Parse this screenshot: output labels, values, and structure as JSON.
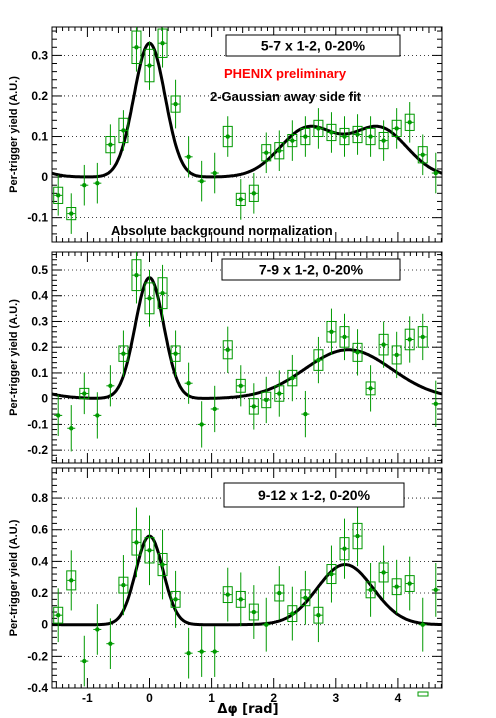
{
  "chart_data": [
    {
      "type": "scatter",
      "label": "5-7 x 1-2, 0-20%",
      "ylabel": "Per-trigger yield (A.U.)",
      "xlabel": "Δφ [rad]",
      "xlim": [
        -1.57,
        4.71
      ],
      "ylim": [
        -0.16,
        0.37
      ],
      "yticks": [
        -0.1,
        0,
        0.1,
        0.2,
        0.3
      ],
      "ytick_labels": [
        "-0.1",
        "0",
        "0.1",
        "0.2",
        "0.3"
      ],
      "xticks": [
        -1,
        0,
        1,
        2,
        3,
        4
      ],
      "grid": "horizontal dotted",
      "annotations": [
        {
          "text": "PHENIX preliminary",
          "color": "#ff0000"
        },
        {
          "text": "2-Gaussian away side fit",
          "color": "#000000"
        },
        {
          "text": "Absolute background normalization",
          "color": "#000000"
        }
      ],
      "data": {
        "x": [
          -1.47,
          -1.26,
          -1.05,
          -0.84,
          -0.63,
          -0.42,
          -0.21,
          0.0,
          0.21,
          0.42,
          0.63,
          0.84,
          1.05,
          1.26,
          1.47,
          1.68,
          1.88,
          2.09,
          2.3,
          2.51,
          2.72,
          2.93,
          3.14,
          3.35,
          3.56,
          3.77,
          3.98,
          4.19,
          4.4,
          4.61
        ],
        "y": [
          -0.045,
          -0.09,
          -0.02,
          -0.015,
          0.08,
          0.115,
          0.32,
          0.275,
          0.33,
          0.18,
          0.05,
          -0.01,
          0.01,
          0.1,
          -0.055,
          -0.04,
          0.06,
          0.065,
          0.09,
          0.1,
          0.12,
          0.11,
          0.1,
          0.105,
          0.1,
          0.09,
          0.12,
          0.135,
          0.055,
          0.01
        ],
        "yerr": [
          0.05,
          0.05,
          0.05,
          0.05,
          0.05,
          0.05,
          0.06,
          0.06,
          0.06,
          0.06,
          0.05,
          0.05,
          0.05,
          0.05,
          0.05,
          0.05,
          0.05,
          0.05,
          0.05,
          0.05,
          0.05,
          0.05,
          0.05,
          0.05,
          0.05,
          0.05,
          0.05,
          0.05,
          0.05,
          0.05
        ],
        "syst": [
          0.02,
          0.015,
          0.0,
          0.0,
          0.02,
          0.03,
          0.04,
          0.04,
          0.035,
          0.02,
          0.0,
          0.0,
          0.0,
          0.025,
          0.015,
          0.02,
          0.02,
          0.02,
          0.015,
          0.02,
          0.02,
          0.02,
          0.02,
          0.02,
          0.02,
          0.02,
          0.02,
          0.02,
          0.02,
          0.0
        ]
      },
      "fit": {
        "near_amp": 0.33,
        "near_sigma": 0.25,
        "away1_mu": 2.55,
        "away1_amp": 0.12,
        "away1_sigma": 0.45,
        "away2_mu": 3.7,
        "away2_amp": 0.12,
        "away2_sigma": 0.45
      }
    },
    {
      "type": "scatter",
      "label": "7-9 x 1-2, 0-20%",
      "ylabel": "Per-trigger yield (A.U.)",
      "xlim": [
        -1.57,
        4.71
      ],
      "ylim": [
        -0.25,
        0.57
      ],
      "yticks": [
        -0.2,
        -0.1,
        0,
        0.1,
        0.2,
        0.3,
        0.4,
        0.5
      ],
      "ytick_labels": [
        "-0.2",
        "-0.1",
        "0",
        "0.1",
        "0.2",
        "0.3",
        "0.4",
        "0.5"
      ],
      "xticks": [
        -1,
        0,
        1,
        2,
        3,
        4
      ],
      "grid": "horizontal dotted",
      "data": {
        "x": [
          -1.47,
          -1.26,
          -1.05,
          -0.84,
          -0.63,
          -0.42,
          -0.21,
          0.0,
          0.21,
          0.42,
          0.63,
          0.84,
          1.05,
          1.26,
          1.47,
          1.68,
          1.88,
          2.09,
          2.3,
          2.51,
          2.72,
          2.93,
          3.14,
          3.35,
          3.56,
          3.77,
          3.98,
          4.19,
          4.4,
          4.61
        ],
        "y": [
          -0.065,
          -0.115,
          0.02,
          -0.065,
          0.05,
          0.175,
          0.48,
          0.39,
          0.41,
          0.175,
          0.06,
          -0.1,
          -0.04,
          0.19,
          0.05,
          -0.03,
          -0.005,
          0.02,
          0.08,
          -0.06,
          0.15,
          0.26,
          0.24,
          0.18,
          0.04,
          0.21,
          0.17,
          0.23,
          0.24,
          -0.02
        ],
        "yerr": [
          0.08,
          0.09,
          0.08,
          0.09,
          0.08,
          0.09,
          0.11,
          0.11,
          0.11,
          0.09,
          0.08,
          0.09,
          0.09,
          0.09,
          0.08,
          0.09,
          0.09,
          0.09,
          0.09,
          0.09,
          0.09,
          0.09,
          0.09,
          0.09,
          0.09,
          0.09,
          0.09,
          0.09,
          0.09,
          0.09
        ],
        "syst": [
          0.0,
          0.0,
          0.02,
          0.0,
          0.0,
          0.03,
          0.06,
          0.06,
          0.06,
          0.03,
          0.0,
          0.0,
          0.0,
          0.035,
          0.025,
          0.03,
          0.03,
          0.03,
          0.03,
          0.0,
          0.04,
          0.04,
          0.04,
          0.035,
          0.025,
          0.04,
          0.035,
          0.04,
          0.04,
          0.0
        ]
      },
      "fit": {
        "near_amp": 0.47,
        "near_sigma": 0.23,
        "away1_mu": 3.2,
        "away1_amp": 0.19,
        "away1_sigma": 0.7,
        "away2_mu": 3.2,
        "away2_amp": 0.0,
        "away2_sigma": 0.7
      }
    },
    {
      "type": "scatter",
      "label": "9-12 x 1-2, 0-20%",
      "ylabel": "Per-trigger yield (A.U.)",
      "xlabel": "Δφ [rad]",
      "xlim": [
        -1.57,
        4.71
      ],
      "ylim": [
        -0.4,
        0.99
      ],
      "yticks": [
        -0.4,
        -0.2,
        0,
        0.2,
        0.4,
        0.6,
        0.8
      ],
      "ytick_labels": [
        "-0.4",
        "-0.2",
        "0",
        "0.2",
        "0.4",
        "0.6",
        "0.8"
      ],
      "xticks": [
        -1,
        0,
        1,
        2,
        3,
        4
      ],
      "xtick_labels": [
        "-1",
        "0",
        "1",
        "2",
        "3",
        "4"
      ],
      "grid": "horizontal dotted",
      "data": {
        "x": [
          -1.47,
          -1.26,
          -1.05,
          -0.84,
          -0.63,
          -0.42,
          -0.21,
          0.0,
          0.21,
          0.42,
          0.63,
          0.84,
          1.05,
          1.26,
          1.47,
          1.68,
          1.88,
          2.09,
          2.3,
          2.51,
          2.72,
          2.93,
          3.14,
          3.35,
          3.56,
          3.77,
          3.98,
          4.19,
          4.4,
          4.61
        ],
        "y": [
          0.06,
          0.28,
          -0.23,
          -0.03,
          -0.12,
          0.25,
          0.52,
          0.47,
          0.38,
          0.16,
          -0.18,
          -0.17,
          -0.17,
          0.19,
          0.16,
          0.08,
          0.0,
          0.2,
          0.07,
          0.17,
          0.06,
          0.32,
          0.48,
          0.56,
          0.22,
          0.33,
          0.24,
          0.26,
          0.0,
          0.22
        ],
        "yerr": [
          0.17,
          0.19,
          0.16,
          0.16,
          0.16,
          0.19,
          0.22,
          0.22,
          0.22,
          0.18,
          0.16,
          0.16,
          0.16,
          0.17,
          0.17,
          0.17,
          0.17,
          0.17,
          0.17,
          0.17,
          0.17,
          0.18,
          0.19,
          0.19,
          0.17,
          0.17,
          0.17,
          0.17,
          0.17,
          0.17
        ],
        "syst": [
          0.05,
          0.06,
          0.0,
          0.0,
          0.0,
          0.05,
          0.08,
          0.08,
          0.07,
          0.05,
          0.0,
          0.0,
          0.0,
          0.05,
          0.05,
          0.05,
          0.0,
          0.05,
          0.05,
          0.05,
          0.05,
          0.06,
          0.07,
          0.08,
          0.05,
          0.06,
          0.05,
          0.05,
          0.0,
          0.0
        ]
      },
      "fit": {
        "near_amp": 0.56,
        "near_sigma": 0.22,
        "away1_mu": 3.15,
        "away1_amp": 0.38,
        "away1_sigma": 0.45,
        "away2_mu": 3.15,
        "away2_amp": 0.0,
        "away2_sigma": 0.45
      }
    }
  ],
  "colors": {
    "data": "#009900",
    "fit": "#000000",
    "preliminary": "#ff0000"
  }
}
